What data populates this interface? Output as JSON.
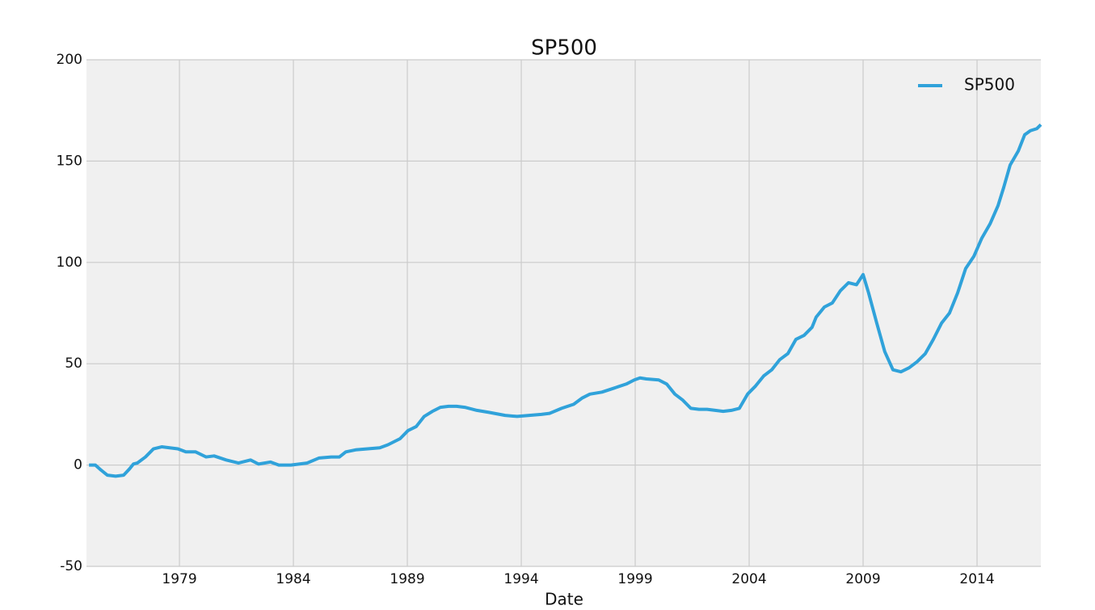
{
  "chart_data": {
    "type": "line",
    "title": "SP500",
    "x_label": "Date",
    "x": [
      1975.03,
      1975.31,
      1975.56,
      1975.84,
      1976.2,
      1976.55,
      1976.8,
      1976.98,
      1977.15,
      1977.51,
      1977.86,
      1978.22,
      1978.57,
      1978.93,
      1979.28,
      1979.71,
      1980.17,
      1980.52,
      1981.05,
      1981.59,
      1982.12,
      1982.47,
      1983.0,
      1983.36,
      1983.89,
      1984.6,
      1985.13,
      1985.66,
      1986.02,
      1986.3,
      1986.73,
      1987.26,
      1987.79,
      1988.15,
      1988.68,
      1989.03,
      1989.39,
      1989.74,
      1990.1,
      1990.45,
      1990.81,
      1991.16,
      1991.52,
      1992.05,
      1992.58,
      1993.29,
      1993.82,
      1994.35,
      1994.88,
      1995.24,
      1995.77,
      1996.3,
      1996.66,
      1997.01,
      1997.54,
      1998.08,
      1998.61,
      1998.96,
      1999.21,
      1999.49,
      2000.03,
      2000.38,
      2000.74,
      2001.09,
      2001.44,
      2001.8,
      2002.15,
      2002.51,
      2002.86,
      2003.22,
      2003.57,
      2003.93,
      2004.28,
      2004.64,
      2004.99,
      2005.34,
      2005.7,
      2006.05,
      2006.41,
      2006.76,
      2006.94,
      2007.3,
      2007.65,
      2008.0,
      2008.36,
      2008.71,
      2009.0,
      2009.24,
      2009.6,
      2009.95,
      2010.31,
      2010.66,
      2011.02,
      2011.37,
      2011.73,
      2012.08,
      2012.44,
      2012.79,
      2013.15,
      2013.5,
      2013.86,
      2014.21,
      2014.57,
      2014.92,
      2015.17,
      2015.45,
      2015.81,
      2016.09,
      2016.34,
      2016.62,
      2016.8
    ],
    "series": [
      {
        "name": "SP500",
        "color": "#30a2da",
        "values": [
          0,
          0,
          -2.5,
          -5,
          -5.5,
          -5,
          -2,
          0.5,
          1,
          4,
          8,
          9,
          8.5,
          8,
          6.5,
          6.5,
          4,
          4.5,
          2.5,
          1,
          2.5,
          0.5,
          1.5,
          0,
          0,
          1,
          3.5,
          4,
          4,
          6.5,
          7.5,
          8,
          8.5,
          10,
          13,
          17,
          19,
          24,
          26.5,
          28.5,
          29,
          29,
          28.5,
          27,
          26,
          24.5,
          24,
          24.5,
          25,
          25.5,
          28,
          30,
          33,
          35,
          36,
          38,
          40,
          42,
          43,
          42.5,
          42,
          40,
          35,
          32,
          28,
          27.5,
          27.5,
          27,
          26.5,
          27,
          28,
          35,
          39,
          44,
          47,
          52,
          55,
          62,
          64,
          68,
          73,
          78,
          80,
          86,
          90,
          89,
          94,
          85,
          70,
          56,
          47,
          46,
          48,
          51,
          55,
          62,
          70,
          75,
          85,
          97,
          103,
          112,
          119,
          128,
          137,
          148,
          155,
          163,
          165,
          166,
          168
        ]
      }
    ],
    "xlim": [
      1974.92,
      2016.8
    ],
    "xticks": [
      1979,
      1984,
      1989,
      1994,
      1999,
      2004,
      2009,
      2014
    ],
    "ylim": [
      -50,
      200
    ],
    "yticks": [
      -50,
      0,
      50,
      100,
      150,
      200
    ],
    "grid": true,
    "legend": "upper right"
  }
}
